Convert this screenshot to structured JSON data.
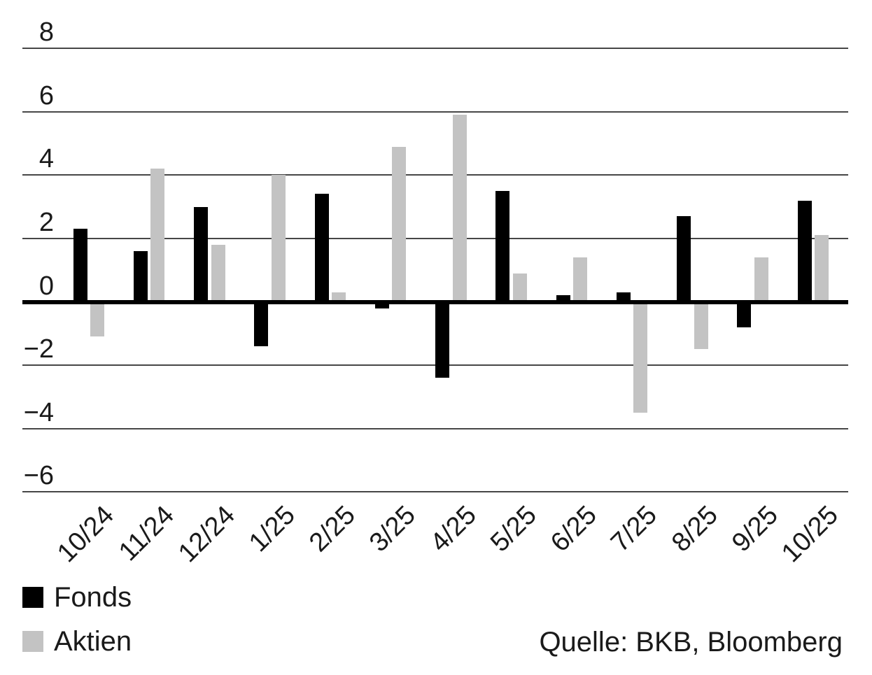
{
  "chart_data": {
    "type": "bar",
    "categories": [
      "10/24",
      "11/24",
      "12/24",
      "1/25",
      "2/25",
      "3/25",
      "4/25",
      "5/25",
      "6/25",
      "7/25",
      "8/25",
      "9/25",
      "10/25"
    ],
    "series": [
      {
        "name": "Fonds",
        "color": "#000000",
        "values": [
          2.3,
          1.6,
          3.0,
          -1.4,
          3.4,
          -0.2,
          -2.4,
          3.5,
          0.2,
          0.3,
          2.7,
          -0.8,
          3.2
        ]
      },
      {
        "name": "Aktien",
        "color": "#c3c3c3",
        "values": [
          -1.1,
          4.2,
          1.8,
          4.0,
          0.3,
          4.9,
          5.9,
          0.9,
          1.4,
          -3.5,
          -1.5,
          1.4,
          2.1
        ]
      }
    ],
    "yticks": [
      {
        "label": "8",
        "value": 8
      },
      {
        "label": "6",
        "value": 6
      },
      {
        "label": "4",
        "value": 4
      },
      {
        "label": "2",
        "value": 2
      },
      {
        "label": "0",
        "value": 0
      },
      {
        "label": "−2",
        "value": -2
      },
      {
        "label": "−4",
        "value": -4
      },
      {
        "label": "−6",
        "value": -6
      }
    ],
    "ylim": [
      -7,
      8.5
    ],
    "grid": true,
    "title": "",
    "xlabel": "",
    "ylabel": "",
    "legend_position": "bottom-left",
    "source": "Quelle: BKB, Bloomberg"
  },
  "colors": {
    "background": "#ffffff",
    "text": "#1a1a1a",
    "gridline": "#474747",
    "zero_axis": "#000000",
    "fonds_bar": "#000000",
    "aktien_bar": "#c3c3c3"
  }
}
